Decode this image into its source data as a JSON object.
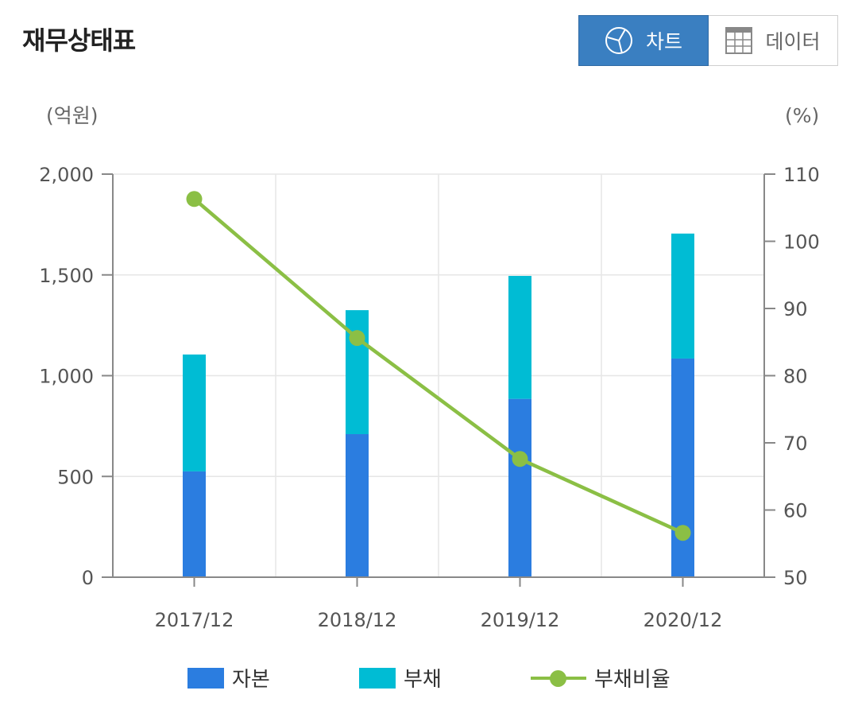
{
  "page": {
    "title": "재무상태표"
  },
  "toggle": {
    "chart_label": "차트",
    "data_label": "데이터"
  },
  "colors": {
    "capital": "#2b7de0",
    "liability": "#00bcd4",
    "ratio": "#8bbf45",
    "active": "#3a7fc1"
  },
  "icons": {
    "chart": "pie-chart-icon",
    "data": "table-grid-icon"
  },
  "chart_data": {
    "type": "bar",
    "stacked": true,
    "title": "재무상태표",
    "categories": [
      "2017/12",
      "2018/12",
      "2019/12",
      "2020/12"
    ],
    "y_left_unit": "(억원)",
    "y_right_unit": "(%)",
    "ylim_left": [
      0,
      2000
    ],
    "ylim_right": [
      50,
      110
    ],
    "yticks_left": [
      "0",
      "500",
      "1,000",
      "1,500",
      "2,000"
    ],
    "yticks_right": [
      "50",
      "60",
      "70",
      "80",
      "90",
      "100",
      "110"
    ],
    "grid": true,
    "legend_position": "bottom",
    "series": [
      {
        "name": "자본",
        "type": "bar",
        "axis": "left",
        "values": [
          525,
          710,
          885,
          1085
        ]
      },
      {
        "name": "부채",
        "type": "bar",
        "axis": "left",
        "values": [
          580,
          615,
          610,
          620
        ]
      },
      {
        "name": "부채비율",
        "type": "line",
        "axis": "right",
        "values": [
          106.3,
          85.6,
          67.6,
          56.6
        ]
      }
    ]
  }
}
